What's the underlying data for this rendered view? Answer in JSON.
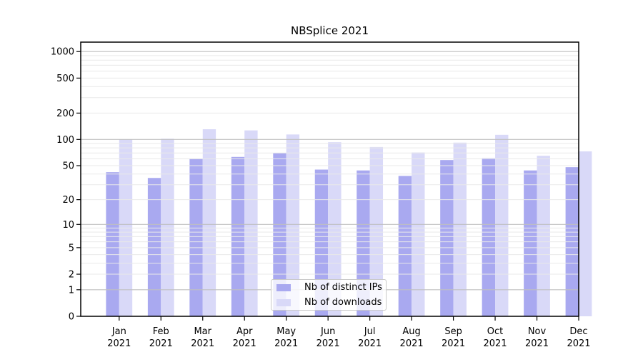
{
  "chart_data": {
    "type": "bar",
    "title": "NBSplice 2021",
    "xlabel": "",
    "ylabel": "",
    "categories": [
      "Jan",
      "Feb",
      "Mar",
      "Apr",
      "May",
      "Jun",
      "Jul",
      "Aug",
      "Sep",
      "Oct",
      "Nov",
      "Dec"
    ],
    "x_year_label": "2021",
    "series": [
      {
        "name": "Nb of distinct IPs",
        "color": "#a9a9f0",
        "values": [
          42,
          36,
          60,
          63,
          70,
          45,
          44,
          38,
          58,
          61,
          44,
          48
        ]
      },
      {
        "name": "Nb of downloads",
        "color": "#d9d9f8",
        "values": [
          100,
          102,
          131,
          127,
          114,
          93,
          82,
          71,
          92,
          113,
          65,
          73
        ]
      }
    ],
    "y_scale": "log10(1+x)",
    "yticks": [
      0,
      1,
      2,
      5,
      10,
      20,
      50,
      100,
      200,
      500,
      1000
    ],
    "ylim": [
      0,
      1280
    ],
    "grid": "on",
    "legend_position": "inside-bottom-center",
    "colors": {
      "major_grid": "#bfbfbf",
      "minor_grid": "#e9e9e9",
      "axis": "#000000",
      "background": "#ffffff"
    }
  }
}
